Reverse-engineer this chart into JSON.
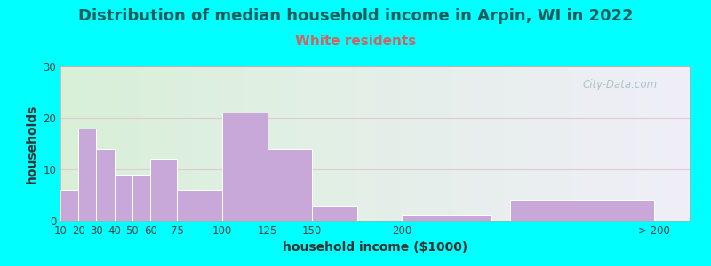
{
  "title": "Distribution of median household income in Arpin, WI in 2022",
  "subtitle": "White residents",
  "xlabel": "household income ($1000)",
  "ylabel": "households",
  "background_outer": "#00FFFF",
  "bar_color": "#C8A8D8",
  "bar_edge_color": "#ffffff",
  "values": [
    6,
    18,
    14,
    9,
    9,
    12,
    6,
    21,
    14,
    3,
    1,
    4
  ],
  "widths": [
    10,
    10,
    10,
    10,
    10,
    15,
    25,
    25,
    25,
    25,
    50,
    80
  ],
  "positions": [
    10,
    20,
    30,
    40,
    50,
    60,
    75,
    100,
    125,
    150,
    200,
    260
  ],
  "tick_positions": [
    10,
    20,
    30,
    40,
    50,
    60,
    75,
    100,
    125,
    150,
    200,
    340
  ],
  "tick_labels": [
    "10",
    "20",
    "30",
    "40",
    "50",
    "60",
    "75",
    "100",
    "125",
    "150",
    "200",
    "> 200"
  ],
  "xlim": [
    10,
    360
  ],
  "ylim": [
    0,
    30
  ],
  "yticks": [
    0,
    10,
    20,
    30
  ],
  "title_fontsize": 13,
  "subtitle_fontsize": 11,
  "title_color": "#1a5c5c",
  "subtitle_color": "#cc6666",
  "axis_label_fontsize": 10,
  "tick_fontsize": 8.5,
  "watermark_text": "City-Data.com",
  "watermark_color": "#a0bcc0",
  "grid_color": "#e8c8d0",
  "bg_gradient_left": "#d8f0d8",
  "bg_gradient_right": "#f0eef8"
}
